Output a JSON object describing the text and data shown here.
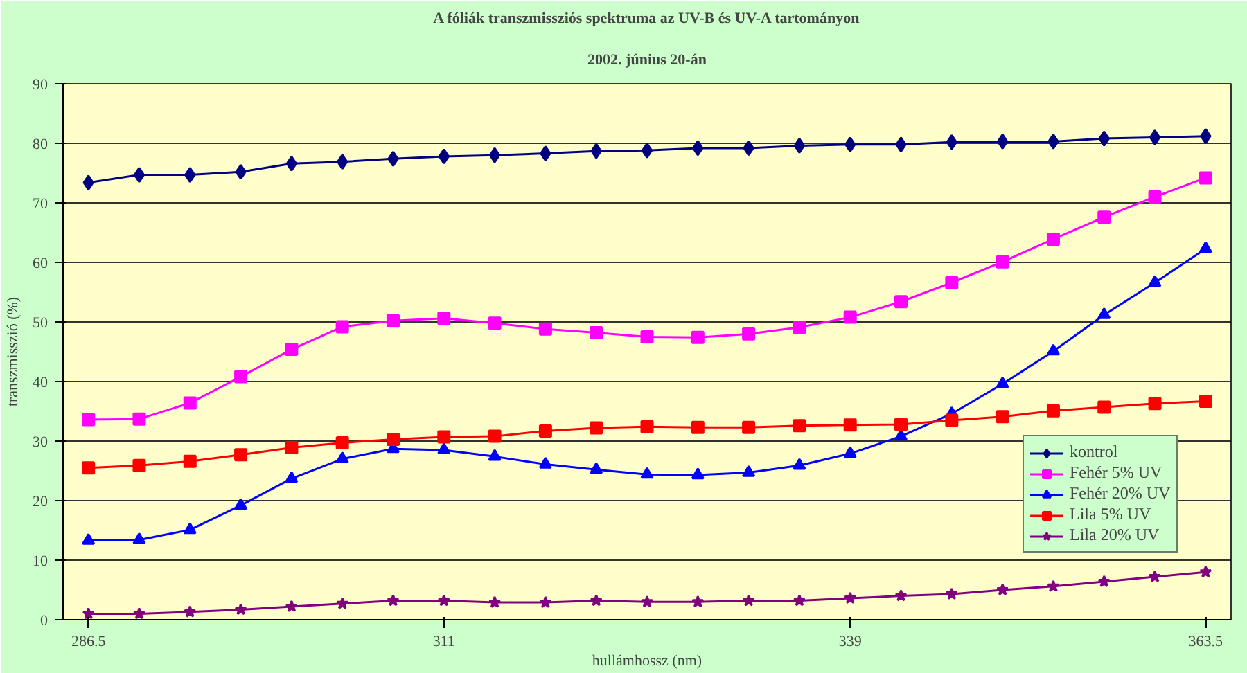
{
  "chart_data": {
    "type": "line",
    "title": "A fóliák transzmissziós spektruma az UV-B és UV-A tartományon",
    "subtitle": "2002. június 20-án",
    "xlabel": "hullámhossz (nm)",
    "ylabel": "transzmisszió (%)",
    "x": [
      286.5,
      290,
      293.5,
      297,
      300.5,
      304,
      307.5,
      311,
      314.5,
      318,
      321.5,
      325,
      328.5,
      332,
      335.5,
      339,
      342.5,
      346,
      349.5,
      353,
      356.5,
      360,
      363.5
    ],
    "xlim": [
      284.75,
      365.25
    ],
    "xticks": [
      286.5,
      311,
      339,
      363.5
    ],
    "ylim": [
      0,
      90
    ],
    "yticks": [
      0,
      10,
      20,
      30,
      40,
      50,
      60,
      70,
      80,
      90
    ],
    "grid": "y",
    "legend": "bottom right",
    "series": [
      {
        "name": "kontrol",
        "color": "#000080",
        "marker": "diamond",
        "values": [
          73.4,
          74.7,
          74.7,
          75.2,
          76.6,
          76.9,
          77.4,
          77.8,
          78.0,
          78.3,
          78.7,
          78.8,
          79.2,
          79.2,
          79.6,
          79.8,
          79.8,
          80.2,
          80.3,
          80.3,
          80.8,
          81.0,
          81.2
        ]
      },
      {
        "name": "Fehér 5% UV",
        "color": "#ff00ff",
        "marker": "square",
        "values": [
          33.6,
          33.7,
          36.4,
          40.8,
          45.4,
          49.2,
          50.2,
          50.6,
          49.8,
          48.8,
          48.2,
          47.5,
          47.4,
          48.0,
          49.1,
          50.8,
          53.4,
          56.6,
          60.1,
          63.9,
          67.6,
          71.0,
          74.2
        ]
      },
      {
        "name": "Fehér 20% UV",
        "color": "#0000ff",
        "marker": "triangle",
        "values": [
          13.3,
          13.4,
          15.1,
          19.2,
          23.7,
          27.0,
          28.7,
          28.5,
          27.4,
          26.1,
          25.2,
          24.4,
          24.3,
          24.7,
          25.9,
          27.9,
          30.8,
          34.6,
          39.6,
          45.1,
          51.2,
          56.6,
          62.3
        ]
      },
      {
        "name": "Lila 5% UV",
        "color": "#ff0000",
        "marker": "square",
        "values": [
          25.5,
          25.9,
          26.6,
          27.7,
          28.9,
          29.7,
          30.3,
          30.7,
          30.8,
          31.7,
          32.2,
          32.4,
          32.3,
          32.3,
          32.6,
          32.7,
          32.8,
          33.5,
          34.1,
          35.1,
          35.7,
          36.3,
          36.7
        ]
      },
      {
        "name": "Lila 20% UV",
        "color": "#800080",
        "marker": "star",
        "values": [
          1.0,
          1.0,
          1.3,
          1.7,
          2.2,
          2.7,
          3.2,
          3.2,
          2.9,
          2.9,
          3.2,
          3.0,
          3.0,
          3.2,
          3.2,
          3.6,
          4.0,
          4.3,
          5.0,
          5.6,
          6.4,
          7.2,
          8.0
        ]
      }
    ]
  }
}
